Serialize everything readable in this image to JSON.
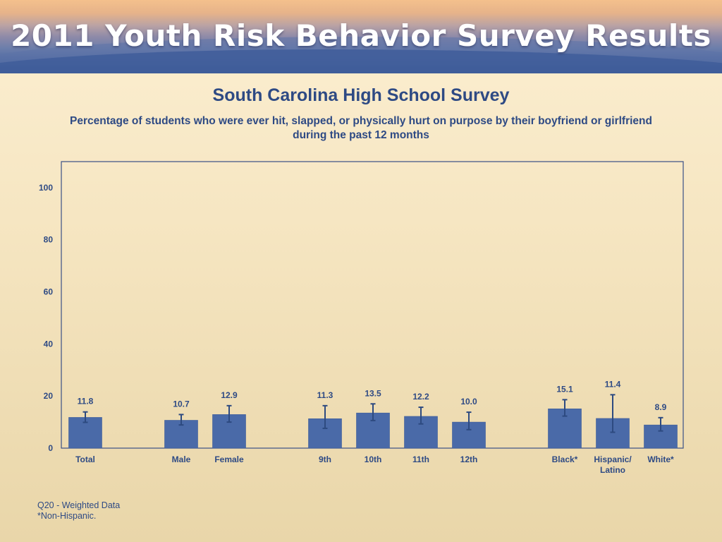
{
  "header": {
    "banner_title": "2011 Youth Risk Behavior Survey Results"
  },
  "colors": {
    "bar": "#4a6aa8",
    "bar_stroke": "#3d5c9a",
    "error_bar": "#2d4a80",
    "text": "#2e4a84",
    "axis": "#3a4f86"
  },
  "chart_data": {
    "type": "bar",
    "title": "South Carolina High School Survey",
    "subtitle": "Percentage of students who were ever hit, slapped, or physically hurt on purpose by their boyfriend or girlfriend during the past 12 months",
    "categories": [
      "Total",
      "Male",
      "Female",
      "9th",
      "10th",
      "11th",
      "12th",
      "Black*",
      "Hispanic/ Latino",
      "White*"
    ],
    "groups": [
      [
        "Total"
      ],
      [
        "Male",
        "Female"
      ],
      [
        "9th",
        "10th",
        "11th",
        "12th"
      ],
      [
        "Black*",
        "Hispanic/ Latino",
        "White*"
      ]
    ],
    "values": [
      11.8,
      10.7,
      12.9,
      11.3,
      13.5,
      12.2,
      10.0,
      15.1,
      11.4,
      8.9
    ],
    "value_labels": [
      "11.8",
      "10.7",
      "12.9",
      "11.3",
      "13.5",
      "12.2",
      "10.0",
      "15.1",
      "11.4",
      "8.9"
    ],
    "ci_low": [
      9.9,
      8.9,
      10.0,
      7.6,
      10.6,
      9.3,
      7.1,
      12.3,
      6.1,
      6.6
    ],
    "ci_high": [
      13.9,
      12.9,
      16.3,
      16.3,
      17.0,
      15.7,
      13.8,
      18.6,
      20.5,
      11.7
    ],
    "yticks": [
      0,
      20,
      40,
      60,
      80,
      100
    ],
    "ylim": [
      0,
      110
    ],
    "xlabel": "",
    "ylabel": "",
    "grid": false,
    "legend": "none"
  },
  "footnotes": {
    "line1": "Q20 - Weighted Data",
    "line2": "*Non-Hispanic."
  }
}
